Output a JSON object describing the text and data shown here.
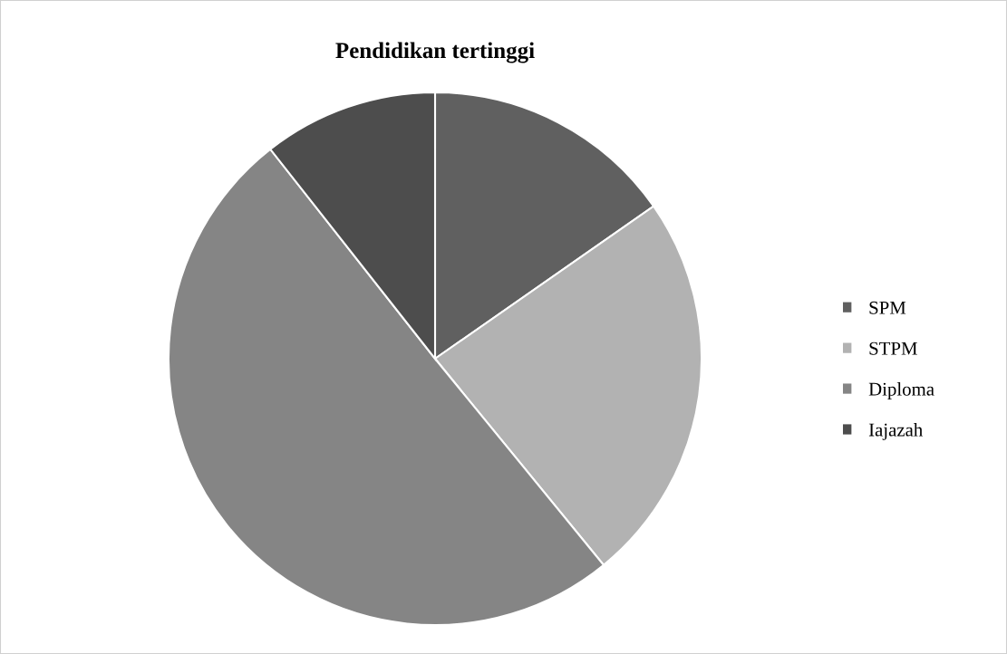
{
  "chart_data": {
    "type": "pie",
    "title": "Pendidikan tertinggi",
    "categories": [
      "SPM",
      "STPM",
      "Diploma",
      "Iajazah"
    ],
    "values": [
      15.3,
      23.8,
      50.3,
      10.6
    ],
    "colors": [
      "#606060",
      "#b2b2b2",
      "#858585",
      "#4d4d4d"
    ],
    "legend": "right"
  }
}
